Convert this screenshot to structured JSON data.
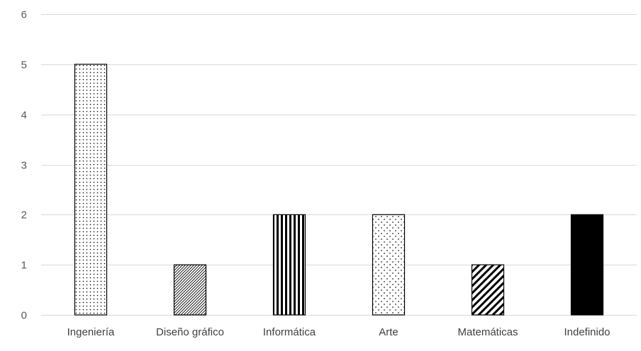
{
  "chart_data": {
    "type": "bar",
    "title": "",
    "xlabel": "",
    "ylabel": "",
    "categories": [
      "Ingeniería",
      "Diseño gráfico",
      "Informática",
      "Arte",
      "Matemáticas",
      "Indefinido"
    ],
    "values": [
      5,
      1,
      2,
      2,
      1,
      2
    ],
    "patterns": [
      "dots",
      "fine-diagonal",
      "vertical-lines",
      "diamond-dots",
      "wide-diagonal",
      "solid"
    ],
    "ylim": [
      0,
      6
    ],
    "yticks": [
      0,
      1,
      2,
      3,
      4,
      5,
      6
    ],
    "grid": true,
    "legend": "none",
    "colors": {
      "bar_stroke": "#000000",
      "grid": "#d9d9d9",
      "axis_text": "#595959"
    }
  }
}
